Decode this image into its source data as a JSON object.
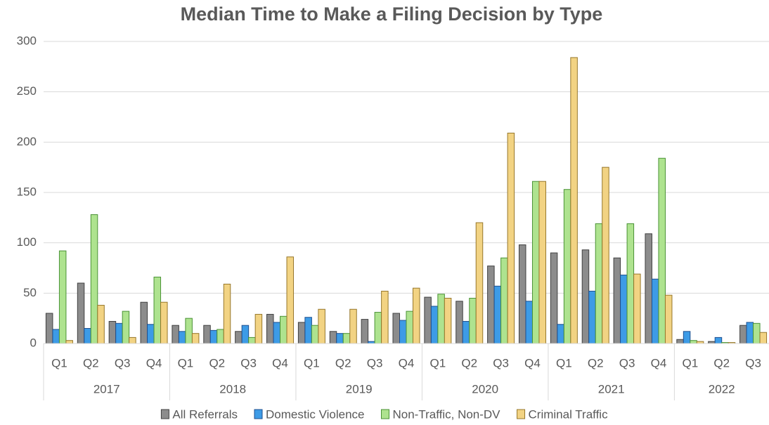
{
  "chart_data": {
    "type": "bar",
    "title": "Median Time to Make a Filing Decision by Type",
    "groups": [
      {
        "label": "2017",
        "categories": [
          "Q1",
          "Q2",
          "Q3",
          "Q4"
        ]
      },
      {
        "label": "2018",
        "categories": [
          "Q1",
          "Q2",
          "Q3",
          "Q4"
        ]
      },
      {
        "label": "2019",
        "categories": [
          "Q1",
          "Q2",
          "Q3",
          "Q4"
        ]
      },
      {
        "label": "2020",
        "categories": [
          "Q1",
          "Q2",
          "Q3",
          "Q4"
        ]
      },
      {
        "label": "2021",
        "categories": [
          "Q1",
          "Q2",
          "Q3",
          "Q4"
        ]
      },
      {
        "label": "2022",
        "categories": [
          "Q1",
          "Q2",
          "Q3"
        ]
      }
    ],
    "series": [
      {
        "name": "All Referrals",
        "color": "#8c8c8c",
        "stroke": "#404040",
        "values": [
          30,
          60,
          22,
          41,
          18,
          18,
          12,
          29,
          21,
          12,
          24,
          30,
          46,
          42,
          77,
          98,
          90,
          93,
          85,
          109,
          4,
          2,
          18
        ]
      },
      {
        "name": "Domestic Violence",
        "color": "#3d9be6",
        "stroke": "#1f4f8f",
        "values": [
          14,
          15,
          20,
          19,
          12,
          13,
          18,
          21,
          26,
          10,
          2,
          23,
          37,
          22,
          57,
          42,
          19,
          52,
          68,
          64,
          12,
          6,
          21
        ]
      },
      {
        "name": "Non-Traffic, Non-DV",
        "color": "#aee38f",
        "stroke": "#4a9236",
        "values": [
          92,
          128,
          32,
          66,
          25,
          14,
          6,
          27,
          18,
          10,
          31,
          32,
          49,
          45,
          85,
          161,
          153,
          119,
          119,
          184,
          3,
          1,
          20
        ]
      },
      {
        "name": "Criminal Traffic",
        "color": "#f2d383",
        "stroke": "#96772b",
        "values": [
          3,
          38,
          6,
          41,
          10,
          59,
          29,
          86,
          34,
          34,
          52,
          55,
          45,
          120,
          209,
          161,
          284,
          175,
          69,
          48,
          2,
          1,
          11
        ]
      }
    ],
    "ylim": [
      0,
      300
    ],
    "yticks": [
      0,
      50,
      100,
      150,
      200,
      250,
      300
    ],
    "grid": true,
    "legend": "bottom"
  }
}
